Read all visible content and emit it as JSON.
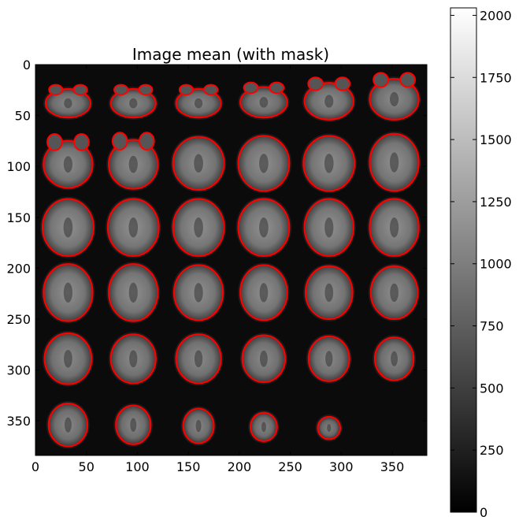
{
  "chart_data": {
    "type": "heatmap",
    "title": "Image mean (with mask)",
    "xlabel": "",
    "ylabel": "",
    "xlim": [
      0,
      384
    ],
    "ylim": [
      384,
      0
    ],
    "x_ticks": [
      0,
      50,
      100,
      150,
      200,
      250,
      300,
      350
    ],
    "y_ticks": [
      0,
      50,
      100,
      150,
      200,
      250,
      300,
      350
    ],
    "grid": false,
    "colormap": "gray",
    "mask_color": "#ff0000",
    "montage": {
      "rows": 6,
      "cols": 6,
      "tiles": 35,
      "tile_size": 64
    },
    "slices": [
      {
        "mask_rx": 22,
        "mask_ry": 14,
        "cy_off": 6,
        "lobes": true,
        "brightness": 0.55
      },
      {
        "mask_rx": 22,
        "mask_ry": 14,
        "cy_off": 6,
        "lobes": true,
        "brightness": 0.55
      },
      {
        "mask_rx": 22,
        "mask_ry": 14,
        "cy_off": 6,
        "lobes": true,
        "brightness": 0.55
      },
      {
        "mask_rx": 23,
        "mask_ry": 15,
        "cy_off": 5,
        "lobes": true,
        "brightness": 0.55
      },
      {
        "mask_rx": 24,
        "mask_ry": 18,
        "cy_off": 4,
        "lobes": true,
        "brightness": 0.58
      },
      {
        "mask_rx": 24,
        "mask_ry": 20,
        "cy_off": 2,
        "lobes": true,
        "brightness": 0.58
      },
      {
        "mask_rx": 24,
        "mask_ry": 23,
        "cy_off": 2,
        "lobes": true,
        "brightness": 0.6
      },
      {
        "mask_rx": 24,
        "mask_ry": 24,
        "cy_off": 2,
        "lobes": true,
        "brightness": 0.6
      },
      {
        "mask_rx": 25,
        "mask_ry": 26,
        "cy_off": 1,
        "lobes": false,
        "brightness": 0.6
      },
      {
        "mask_rx": 25,
        "mask_ry": 27,
        "cy_off": 1,
        "lobes": false,
        "brightness": 0.62
      },
      {
        "mask_rx": 25,
        "mask_ry": 27,
        "cy_off": 1,
        "lobes": false,
        "brightness": 0.62
      },
      {
        "mask_rx": 24,
        "mask_ry": 28,
        "cy_off": 0,
        "lobes": false,
        "brightness": 0.62
      },
      {
        "mask_rx": 25,
        "mask_ry": 28,
        "cy_off": 0,
        "lobes": false,
        "brightness": 0.63
      },
      {
        "mask_rx": 25,
        "mask_ry": 28,
        "cy_off": 0,
        "lobes": false,
        "brightness": 0.63
      },
      {
        "mask_rx": 25,
        "mask_ry": 28,
        "cy_off": 0,
        "lobes": false,
        "brightness": 0.63
      },
      {
        "mask_rx": 25,
        "mask_ry": 28,
        "cy_off": 0,
        "lobes": false,
        "brightness": 0.63
      },
      {
        "mask_rx": 24,
        "mask_ry": 28,
        "cy_off": 0,
        "lobes": false,
        "brightness": 0.63
      },
      {
        "mask_rx": 24,
        "mask_ry": 28,
        "cy_off": 0,
        "lobes": false,
        "brightness": 0.63
      },
      {
        "mask_rx": 24,
        "mask_ry": 28,
        "cy_off": 0,
        "lobes": false,
        "brightness": 0.62
      },
      {
        "mask_rx": 24,
        "mask_ry": 28,
        "cy_off": 0,
        "lobes": false,
        "brightness": 0.62
      },
      {
        "mask_rx": 24,
        "mask_ry": 27,
        "cy_off": 0,
        "lobes": false,
        "brightness": 0.62
      },
      {
        "mask_rx": 23,
        "mask_ry": 27,
        "cy_off": 0,
        "lobes": false,
        "brightness": 0.62
      },
      {
        "mask_rx": 23,
        "mask_ry": 26,
        "cy_off": 0,
        "lobes": false,
        "brightness": 0.6
      },
      {
        "mask_rx": 23,
        "mask_ry": 26,
        "cy_off": 0,
        "lobes": false,
        "brightness": 0.6
      },
      {
        "mask_rx": 23,
        "mask_ry": 25,
        "cy_off": 1,
        "lobes": false,
        "brightness": 0.58
      },
      {
        "mask_rx": 22,
        "mask_ry": 24,
        "cy_off": 1,
        "lobes": false,
        "brightness": 0.58
      },
      {
        "mask_rx": 22,
        "mask_ry": 24,
        "cy_off": 1,
        "lobes": false,
        "brightness": 0.58
      },
      {
        "mask_rx": 21,
        "mask_ry": 23,
        "cy_off": 1,
        "lobes": false,
        "brightness": 0.57
      },
      {
        "mask_rx": 20,
        "mask_ry": 22,
        "cy_off": 1,
        "lobes": false,
        "brightness": 0.57
      },
      {
        "mask_rx": 19,
        "mask_ry": 21,
        "cy_off": 1,
        "lobes": false,
        "brightness": 0.56
      },
      {
        "mask_rx": 19,
        "mask_ry": 21,
        "cy_off": 2,
        "lobes": false,
        "brightness": 0.56
      },
      {
        "mask_rx": 17,
        "mask_ry": 19,
        "cy_off": 2,
        "lobes": false,
        "brightness": 0.55
      },
      {
        "mask_rx": 15,
        "mask_ry": 17,
        "cy_off": 3,
        "lobes": false,
        "brightness": 0.54
      },
      {
        "mask_rx": 13,
        "mask_ry": 14,
        "cy_off": 4,
        "lobes": false,
        "brightness": 0.53
      },
      {
        "mask_rx": 11,
        "mask_ry": 11,
        "cy_off": 5,
        "lobes": false,
        "brightness": 0.5
      }
    ],
    "colorbar": {
      "min": 0,
      "max": 2030,
      "ticks": [
        0,
        250,
        500,
        750,
        1000,
        1250,
        1500,
        1750,
        2000
      ]
    }
  }
}
